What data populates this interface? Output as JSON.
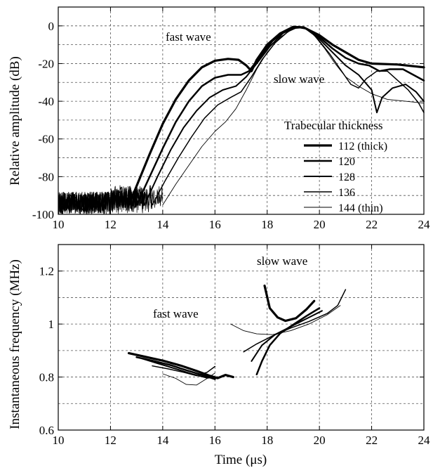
{
  "chart_data": [
    {
      "type": "line",
      "title": "",
      "xlabel": "",
      "ylabel": "Relative amplitude (dB)",
      "xlim": [
        10,
        24
      ],
      "ylim": [
        -100,
        10
      ],
      "xticks": [
        10,
        12,
        14,
        16,
        18,
        20,
        22,
        24
      ],
      "yticks": [
        0,
        -20,
        -40,
        -60,
        -80,
        -100
      ],
      "grid": true,
      "legend": {
        "title": "Trabecular thickness",
        "position": "lower-right",
        "entries": [
          "112 (thick)",
          "120",
          "128",
          "136",
          "144 (thin)"
        ]
      },
      "annotations": [
        {
          "text": "fast wave",
          "x": 15.8,
          "y": -6
        },
        {
          "text": "slow wave",
          "x": 19.0,
          "y": -30
        }
      ],
      "series": [
        {
          "name": "112 (thick)",
          "stroke_width": 3.2,
          "noise_until": 12.7,
          "points": [
            [
              12.7,
              -95
            ],
            [
              13.0,
              -85
            ],
            [
              13.5,
              -68
            ],
            [
              14.0,
              -52
            ],
            [
              14.5,
              -39
            ],
            [
              15.0,
              -29
            ],
            [
              15.5,
              -22
            ],
            [
              16.0,
              -18.5
            ],
            [
              16.5,
              -17.5
            ],
            [
              16.9,
              -18
            ],
            [
              17.2,
              -21
            ],
            [
              17.4,
              -24
            ],
            [
              17.6,
              -18
            ],
            [
              18.0,
              -10
            ],
            [
              18.5,
              -4
            ],
            [
              19.0,
              -0.5
            ],
            [
              19.4,
              -0.8
            ],
            [
              20.0,
              -5
            ],
            [
              20.5,
              -10
            ],
            [
              21.0,
              -14
            ],
            [
              21.5,
              -18
            ],
            [
              22.0,
              -20
            ],
            [
              23.0,
              -20.5
            ],
            [
              24.0,
              -22
            ]
          ]
        },
        {
          "name": "120",
          "stroke_width": 2.5,
          "noise_until": 13.0,
          "points": [
            [
              13.0,
              -95
            ],
            [
              13.5,
              -80
            ],
            [
              14.0,
              -65
            ],
            [
              14.5,
              -51
            ],
            [
              15.0,
              -40
            ],
            [
              15.5,
              -32
            ],
            [
              16.0,
              -27.5
            ],
            [
              16.5,
              -26
            ],
            [
              17.0,
              -26
            ],
            [
              17.3,
              -24
            ],
            [
              17.7,
              -17
            ],
            [
              18.2,
              -8
            ],
            [
              18.7,
              -2.5
            ],
            [
              19.1,
              -0.5
            ],
            [
              19.5,
              -1.5
            ],
            [
              20.0,
              -6
            ],
            [
              20.5,
              -12
            ],
            [
              21.0,
              -17
            ],
            [
              21.5,
              -20
            ],
            [
              21.9,
              -21
            ],
            [
              22.3,
              -24
            ],
            [
              22.7,
              -23
            ],
            [
              23.2,
              -23
            ],
            [
              24.0,
              -29
            ]
          ]
        },
        {
          "name": "128",
          "stroke_width": 2.0,
          "noise_until": 13.3,
          "points": [
            [
              13.3,
              -95
            ],
            [
              13.8,
              -80
            ],
            [
              14.3,
              -66
            ],
            [
              14.8,
              -54
            ],
            [
              15.3,
              -45
            ],
            [
              15.8,
              -38
            ],
            [
              16.3,
              -34
            ],
            [
              16.8,
              -32
            ],
            [
              17.2,
              -27
            ],
            [
              17.6,
              -20
            ],
            [
              18.1,
              -11
            ],
            [
              18.6,
              -4
            ],
            [
              19.1,
              -0.5
            ],
            [
              19.5,
              -1.5
            ],
            [
              20.0,
              -7
            ],
            [
              20.5,
              -14
            ],
            [
              21.0,
              -21
            ],
            [
              21.5,
              -26
            ],
            [
              22.0,
              -34
            ],
            [
              22.2,
              -46
            ],
            [
              22.4,
              -38
            ],
            [
              22.8,
              -33
            ],
            [
              23.3,
              -31
            ],
            [
              23.7,
              -35
            ],
            [
              24.0,
              -40
            ]
          ]
        },
        {
          "name": "136",
          "stroke_width": 1.5,
          "noise_until": 13.6,
          "points": [
            [
              13.6,
              -95
            ],
            [
              14.1,
              -82
            ],
            [
              14.6,
              -70
            ],
            [
              15.1,
              -59
            ],
            [
              15.6,
              -49
            ],
            [
              16.1,
              -42
            ],
            [
              16.6,
              -38
            ],
            [
              17.0,
              -35
            ],
            [
              17.4,
              -27
            ],
            [
              17.8,
              -18
            ],
            [
              18.3,
              -9
            ],
            [
              18.8,
              -3
            ],
            [
              19.2,
              -0.5
            ],
            [
              19.6,
              -2
            ],
            [
              20.0,
              -8
            ],
            [
              20.4,
              -15
            ],
            [
              20.8,
              -23
            ],
            [
              21.2,
              -31
            ],
            [
              21.5,
              -33
            ],
            [
              21.8,
              -28
            ],
            [
              22.2,
              -24
            ],
            [
              22.6,
              -24
            ],
            [
              23.0,
              -29
            ],
            [
              23.4,
              -34
            ],
            [
              23.8,
              -41
            ],
            [
              24.0,
              -46
            ]
          ]
        },
        {
          "name": "144 (thin)",
          "stroke_width": 0.9,
          "noise_until": 14.0,
          "points": [
            [
              14.0,
              -95
            ],
            [
              14.5,
              -84
            ],
            [
              15.0,
              -74
            ],
            [
              15.5,
              -64
            ],
            [
              16.0,
              -56
            ],
            [
              16.4,
              -51
            ],
            [
              16.8,
              -44
            ],
            [
              17.2,
              -34
            ],
            [
              17.6,
              -23
            ],
            [
              18.0,
              -14
            ],
            [
              18.5,
              -6
            ],
            [
              19.0,
              -1.5
            ],
            [
              19.4,
              -1
            ],
            [
              19.8,
              -5
            ],
            [
              20.2,
              -12
            ],
            [
              20.6,
              -20
            ],
            [
              21.0,
              -27
            ],
            [
              21.5,
              -32
            ],
            [
              22.0,
              -36
            ],
            [
              22.6,
              -39
            ],
            [
              23.3,
              -40
            ],
            [
              24.0,
              -41
            ]
          ]
        }
      ]
    },
    {
      "type": "line",
      "title": "",
      "xlabel": "Time (μs)",
      "ylabel": "Instantaneous frequency (MHz)",
      "xlim": [
        10,
        24
      ],
      "ylim": [
        0.6,
        1.3
      ],
      "xticks": [
        10,
        12,
        14,
        16,
        18,
        20,
        22,
        24
      ],
      "yticks": [
        0.6,
        0.8,
        1.0,
        1.2
      ],
      "grid": true,
      "annotations": [
        {
          "text": "fast wave",
          "x": 13.8,
          "y": 1.03
        },
        {
          "text": "slow wave",
          "x": 18.8,
          "y": 1.29
        }
      ],
      "series": [
        {
          "name": "112 (thick)",
          "stroke_width": 3.2,
          "segments": [
            [
              [
                12.7,
                0.89
              ],
              [
                13.3,
                0.877
              ],
              [
                14.0,
                0.862
              ],
              [
                14.7,
                0.843
              ],
              [
                15.3,
                0.823
              ],
              [
                15.8,
                0.805
              ],
              [
                16.1,
                0.796
              ],
              [
                16.4,
                0.808
              ],
              [
                16.7,
                0.8
              ]
            ],
            [
              [
                17.9,
                1.145
              ],
              [
                18.1,
                1.06
              ],
              [
                18.4,
                1.025
              ],
              [
                18.7,
                1.012
              ],
              [
                19.1,
                1.022
              ],
              [
                19.5,
                1.055
              ],
              [
                19.8,
                1.087
              ]
            ]
          ]
        },
        {
          "name": "120",
          "stroke_width": 2.5,
          "segments": [
            [
              [
                13.0,
                0.875
              ],
              [
                13.6,
                0.862
              ],
              [
                14.3,
                0.845
              ],
              [
                14.9,
                0.826
              ],
              [
                15.5,
                0.808
              ],
              [
                16.0,
                0.792
              ]
            ],
            [
              [
                17.6,
                0.81
              ],
              [
                17.8,
                0.86
              ],
              [
                18.1,
                0.92
              ],
              [
                18.5,
                0.965
              ],
              [
                19.0,
                0.998
              ],
              [
                19.5,
                1.03
              ],
              [
                20.0,
                1.06
              ]
            ]
          ]
        },
        {
          "name": "128",
          "stroke_width": 2.0,
          "segments": [
            [
              [
                13.2,
                0.87
              ],
              [
                13.8,
                0.852
              ],
              [
                14.5,
                0.831
              ],
              [
                15.1,
                0.812
              ],
              [
                15.7,
                0.797
              ],
              [
                16.1,
                0.8
              ]
            ],
            [
              [
                17.4,
                0.86
              ],
              [
                17.8,
                0.92
              ],
              [
                18.3,
                0.96
              ],
              [
                18.9,
                0.99
              ],
              [
                19.5,
                1.02
              ],
              [
                20.1,
                1.05
              ]
            ]
          ]
        },
        {
          "name": "136",
          "stroke_width": 1.5,
          "segments": [
            [
              [
                13.6,
                0.842
              ],
              [
                14.2,
                0.831
              ],
              [
                14.8,
                0.818
              ],
              [
                15.3,
                0.805
              ],
              [
                15.7,
                0.818
              ],
              [
                16.0,
                0.84
              ]
            ],
            [
              [
                17.1,
                0.895
              ],
              [
                17.6,
                0.925
              ],
              [
                18.2,
                0.955
              ],
              [
                18.9,
                0.985
              ],
              [
                19.6,
                1.01
              ],
              [
                20.3,
                1.04
              ],
              [
                20.7,
                1.07
              ],
              [
                21.0,
                1.13
              ]
            ]
          ]
        },
        {
          "name": "144 (thin)",
          "stroke_width": 0.9,
          "segments": [
            [
              [
                14.0,
                0.812
              ],
              [
                14.5,
                0.795
              ],
              [
                14.9,
                0.772
              ],
              [
                15.3,
                0.77
              ],
              [
                15.7,
                0.795
              ],
              [
                16.0,
                0.815
              ]
            ],
            [
              [
                16.6,
                1.0
              ],
              [
                17.1,
                0.975
              ],
              [
                17.6,
                0.963
              ],
              [
                18.2,
                0.96
              ],
              [
                18.9,
                0.975
              ],
              [
                19.6,
                1.0
              ],
              [
                20.3,
                1.035
              ],
              [
                20.8,
                1.07
              ]
            ]
          ]
        }
      ]
    }
  ]
}
